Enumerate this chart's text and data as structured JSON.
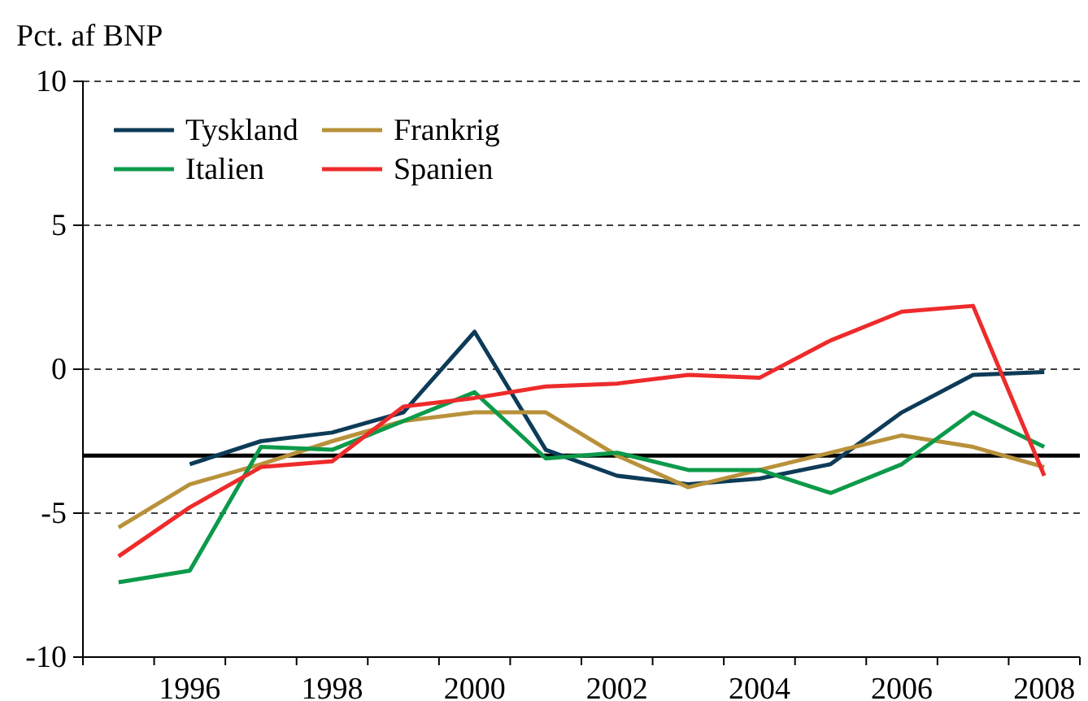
{
  "chart_data": {
    "type": "line",
    "ylabel": "Pct. af BNP",
    "categories": [
      null,
      "1996",
      null,
      "1998",
      null,
      "2000",
      null,
      "2002",
      null,
      "2004",
      null,
      "2006",
      null,
      "2008"
    ],
    "series": [
      {
        "name": "Tyskland",
        "color": "#0d3b58",
        "values": [
          null,
          -3.3,
          -2.5,
          -2.2,
          -1.5,
          1.3,
          -2.8,
          -3.7,
          -4.0,
          -3.8,
          -3.3,
          -1.5,
          -0.2,
          -0.1
        ]
      },
      {
        "name": "Frankrig",
        "color": "#b8913a",
        "values": [
          -5.5,
          -4.0,
          -3.3,
          -2.5,
          -1.8,
          -1.5,
          -1.5,
          -3.0,
          -4.1,
          -3.5,
          -2.9,
          -2.3,
          -2.7,
          -3.4
        ]
      },
      {
        "name": "Italien",
        "color": "#0c9a4a",
        "values": [
          -7.4,
          -7.0,
          -2.7,
          -2.8,
          -1.8,
          -0.8,
          -3.1,
          -2.9,
          -3.5,
          -3.5,
          -4.3,
          -3.3,
          -1.5,
          -2.7
        ]
      },
      {
        "name": "Spanien",
        "color": "#ee2b2b",
        "values": [
          -6.5,
          -4.8,
          -3.4,
          -3.2,
          -1.3,
          -1.0,
          -0.6,
          -0.5,
          -0.2,
          -0.3,
          1.0,
          2.0,
          2.2,
          -3.7
        ]
      }
    ],
    "ylim": [
      -10,
      10
    ],
    "yticks": [
      -10,
      -5,
      0,
      5,
      10
    ],
    "grid": "y",
    "legend": "top left",
    "ref_lines": [
      {
        "axis": "y",
        "value": -3,
        "color": "#000000"
      }
    ]
  }
}
